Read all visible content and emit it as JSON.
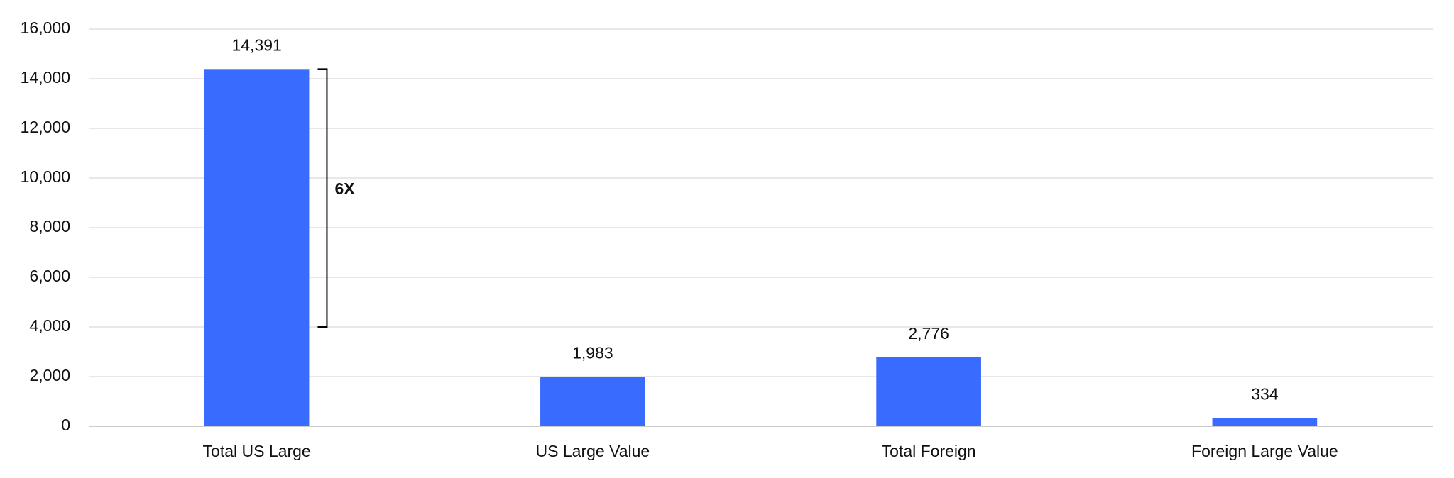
{
  "chart_data": {
    "type": "bar",
    "categories": [
      "Total US Large",
      "US Large Value",
      "Total Foreign",
      "Foreign Large Value"
    ],
    "values": [
      14391,
      1983,
      2776,
      334
    ],
    "value_labels": [
      "14,391",
      "1,983",
      "2,776",
      "334"
    ],
    "color": "#3a6bff",
    "ylim": [
      0,
      16000
    ],
    "yticks": [
      0,
      {
        "value": 2000,
        "label": "2,000"
      },
      {
        "value": 4000,
        "label": "4,000"
      },
      {
        "value": 6000,
        "label": "6,000"
      },
      {
        "value": 8000,
        "label": "8,000"
      },
      {
        "value": 10000,
        "label": "10,000"
      },
      {
        "value": 12000,
        "label": "12,000"
      },
      {
        "value": 14000,
        "label": "14,000"
      },
      {
        "value": 16000,
        "label": "16,000"
      }
    ],
    "grid": true,
    "annotation": {
      "text": "6X",
      "range": [
        4000,
        14391
      ]
    }
  }
}
